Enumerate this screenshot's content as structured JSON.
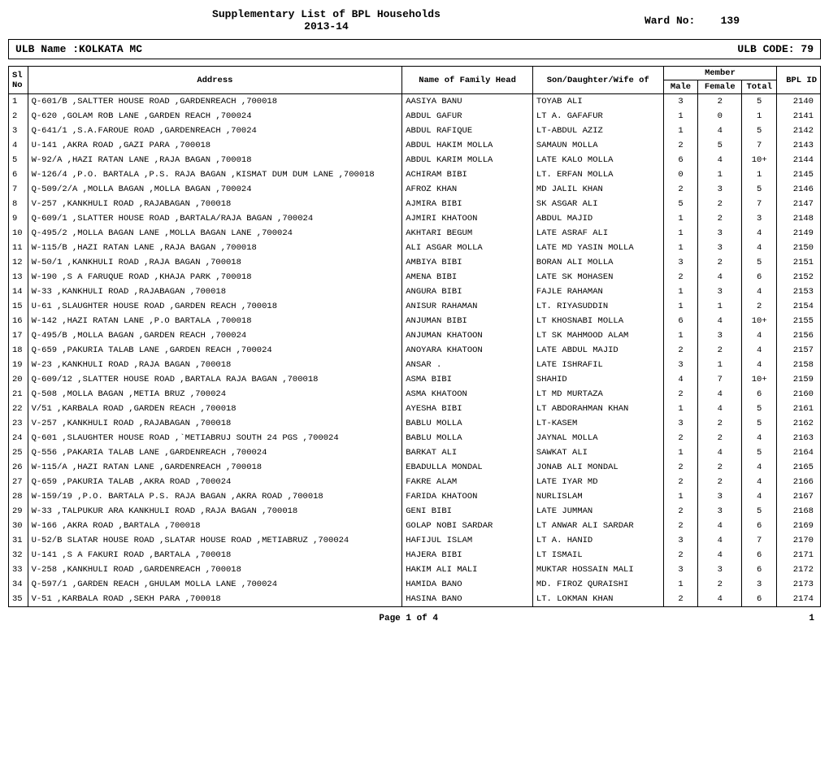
{
  "header": {
    "title_line1": "Supplementary List of BPL Households",
    "title_line2": "2013-14",
    "ward_label": "Ward No:",
    "ward_no": "139"
  },
  "ulb": {
    "name_label": "ULB Name :",
    "name": "KOLKATA MC",
    "code_label": "ULB CODE:",
    "code": "79"
  },
  "columns": {
    "sl": "Sl No",
    "address": "Address",
    "family_head": "Name of Family Head",
    "relation": "Son/Daughter/Wife of",
    "member": "Member",
    "male": "Male",
    "female": "Female",
    "total": "Total",
    "bpl_id": "BPL ID"
  },
  "rows": [
    {
      "sl": "1",
      "addr": "Q-601/B ,SALTTER HOUSE ROAD ,GARDENREACH ,700018",
      "head": "AASIYA  BANU",
      "rel": "TOYAB ALI",
      "m": "3",
      "f": "2",
      "t": "5",
      "bpl": "2140"
    },
    {
      "sl": "2",
      "addr": "Q-620 ,GOLAM ROB LANE ,GARDEN REACH ,700024",
      "head": "ABDUL  GAFUR",
      "rel": "LT A. GAFAFUR",
      "m": "1",
      "f": "0",
      "t": "1",
      "bpl": "2141"
    },
    {
      "sl": "3",
      "addr": "Q-641/1 ,S.A.FAROUE ROAD ,GARDENREACH ,70024",
      "head": "ABDUL  RAFIQUE",
      "rel": "LT-ABDUL AZIZ",
      "m": "1",
      "f": "4",
      "t": "5",
      "bpl": "2142"
    },
    {
      "sl": "4",
      "addr": "U-141 ,AKRA ROAD  ,GAZI PARA ,700018",
      "head": "ABDUL HAKIM  MOLLA",
      "rel": "SAMAUN MOLLA",
      "m": "2",
      "f": "5",
      "t": "7",
      "bpl": "2143"
    },
    {
      "sl": "5",
      "addr": "W-92/A ,HAZI RATAN LANE ,RAJA BAGAN ,700018",
      "head": "ABDUL KARIM MOLLA",
      "rel": "LATE KALO MOLLA",
      "m": "6",
      "f": "4",
      "t": "10+",
      "bpl": "2144"
    },
    {
      "sl": "6",
      "addr": "W-126/4 ,P.O. BARTALA ,P.S. RAJA BAGAN  ,KISMAT DUM DUM LANE ,700018",
      "head": "ACHIRAM  BIBI",
      "rel": "LT. ERFAN MOLLA",
      "m": "0",
      "f": "1",
      "t": "1",
      "bpl": "2145"
    },
    {
      "sl": "7",
      "addr": "Q-509/2/A ,MOLLA BAGAN ,MOLLA BAGAN ,700024",
      "head": "AFROZ  KHAN",
      "rel": "MD JALIL KHAN",
      "m": "2",
      "f": "3",
      "t": "5",
      "bpl": "2146"
    },
    {
      "sl": "8",
      "addr": "V-257 ,KANKHULI ROAD ,RAJABAGAN ,700018",
      "head": "AJMIRA  BIBI",
      "rel": "SK ASGAR ALI",
      "m": "5",
      "f": "2",
      "t": "7",
      "bpl": "2147"
    },
    {
      "sl": "9",
      "addr": "Q-609/1 ,SLATTER HOUSE ROAD ,BARTALA/RAJA BAGAN ,700024",
      "head": "AJMIRI  KHATOON",
      "rel": "ABDUL MAJID",
      "m": "1",
      "f": "2",
      "t": "3",
      "bpl": "2148"
    },
    {
      "sl": "10",
      "addr": "Q-495/2 ,MOLLA BAGAN LANE ,MOLLA BAGAN LANE ,700024",
      "head": "AKHTARI  BEGUM",
      "rel": "LATE ASRAF ALI",
      "m": "1",
      "f": "3",
      "t": "4",
      "bpl": "2149"
    },
    {
      "sl": "11",
      "addr": "W-115/B ,HAZI RATAN LANE ,RAJA BAGAN ,700018",
      "head": "ALI ASGAR MOLLA",
      "rel": "LATE MD YASIN MOLLA",
      "m": "1",
      "f": "3",
      "t": "4",
      "bpl": "2150"
    },
    {
      "sl": "12",
      "addr": "W-50/1 ,KANKHULI ROAD ,RAJA BAGAN ,700018",
      "head": "AMBIYA  BIBI",
      "rel": "BORAN ALI MOLLA",
      "m": "3",
      "f": "2",
      "t": "5",
      "bpl": "2151"
    },
    {
      "sl": "13",
      "addr": "W-190 ,S A FARUQUE ROAD ,KHAJA PARK ,700018",
      "head": "AMENA  BIBI",
      "rel": "LATE SK MOHASEN",
      "m": "2",
      "f": "4",
      "t": "6",
      "bpl": "2152"
    },
    {
      "sl": "14",
      "addr": "W-33 ,KANKHULI ROAD ,RAJABAGAN ,700018",
      "head": "ANGURA   BIBI",
      "rel": "FAJLE RAHAMAN",
      "m": "1",
      "f": "3",
      "t": "4",
      "bpl": "2153"
    },
    {
      "sl": "15",
      "addr": "U-61 ,SLAUGHTER HOUSE ROAD ,GARDEN REACH ,700018",
      "head": "ANISUR  RAHAMAN",
      "rel": "LT. RIYASUDDIN",
      "m": "1",
      "f": "1",
      "t": "2",
      "bpl": "2154"
    },
    {
      "sl": "16",
      "addr": "W-142 ,HAZI RATAN LANE ,P.O BARTALA ,700018",
      "head": "ANJUMAN  BIBI",
      "rel": "LT KHOSNABI MOLLA",
      "m": "6",
      "f": "4",
      "t": "10+",
      "bpl": "2155"
    },
    {
      "sl": "17",
      "addr": "Q-495/B ,MOLLA BAGAN ,GARDEN REACH ,700024",
      "head": "ANJUMAN  KHATOON",
      "rel": "LT SK MAHMOOD ALAM",
      "m": "1",
      "f": "3",
      "t": "4",
      "bpl": "2156"
    },
    {
      "sl": "18",
      "addr": "Q-659 ,PAKURIA TALAB LANE ,GARDEN REACH ,700024",
      "head": "ANOYARA  KHATOON",
      "rel": "LATE ABDUL MAJID",
      "m": "2",
      "f": "2",
      "t": "4",
      "bpl": "2157"
    },
    {
      "sl": "19",
      "addr": "W-23 ,KANKHULI ROAD ,RAJA BAGAN ,700018",
      "head": "ANSAR  .",
      "rel": "LATE ISHRAFIL",
      "m": "3",
      "f": "1",
      "t": "4",
      "bpl": "2158"
    },
    {
      "sl": "20",
      "addr": "Q-609/12 ,SLATTER HOUSE ROAD ,BARTALA RAJA BAGAN ,700018",
      "head": "ASMA  BIBI",
      "rel": "SHAHID",
      "m": "4",
      "f": "7",
      "t": "10+",
      "bpl": "2159"
    },
    {
      "sl": "21",
      "addr": "Q-508 ,MOLLA BAGAN ,METIA BRUZ ,700024",
      "head": "ASMA  KHATOON",
      "rel": "LT MD MURTAZA",
      "m": "2",
      "f": "4",
      "t": "6",
      "bpl": "2160"
    },
    {
      "sl": "22",
      "addr": "V/51 ,KARBALA ROAD ,GARDEN REACH ,700018",
      "head": "AYESHA  BIBI",
      "rel": "LT ABDORAHMAN KHAN",
      "m": "1",
      "f": "4",
      "t": "5",
      "bpl": "2161"
    },
    {
      "sl": "23",
      "addr": "V-257 ,KANKHULI ROAD ,RAJABAGAN ,700018",
      "head": "BABLU  MOLLA",
      "rel": "LT-KASEM",
      "m": "3",
      "f": "2",
      "t": "5",
      "bpl": "2162"
    },
    {
      "sl": "24",
      "addr": "Q-601 ,SLAUGHTER HOUSE ROAD ,`METIABRUJ SOUTH 24 PGS ,700024",
      "head": "BABLU  MOLLA",
      "rel": "JAYNAL MOLLA",
      "m": "2",
      "f": "2",
      "t": "4",
      "bpl": "2163"
    },
    {
      "sl": "25",
      "addr": "Q-556 ,PAKARIA TALAB LANE ,GARDENREACH ,700024",
      "head": "BARKAT   ALI",
      "rel": "SAWKAT ALI",
      "m": "1",
      "f": "4",
      "t": "5",
      "bpl": "2164"
    },
    {
      "sl": "26",
      "addr": "W-115/A ,HAZI RATAN LANE ,GARDENREACH ,700018",
      "head": "EBADULLA  MONDAL",
      "rel": "JONAB ALI MONDAL",
      "m": "2",
      "f": "2",
      "t": "4",
      "bpl": "2165"
    },
    {
      "sl": "27",
      "addr": "Q-659 ,PAKURIA TALAB ,AKRA ROAD ,700024",
      "head": "FAKRE  ALAM",
      "rel": "LATE IYAR MD",
      "m": "2",
      "f": "2",
      "t": "4",
      "bpl": "2166"
    },
    {
      "sl": "28",
      "addr": "W-159/19 ,P.O. BARTALA P.S. RAJA BAGAN ,AKRA ROAD ,700018",
      "head": "FARIDA  KHATOON",
      "rel": "NURLISLAM",
      "m": "1",
      "f": "3",
      "t": "4",
      "bpl": "2167"
    },
    {
      "sl": "29",
      "addr": "W-33 ,TALPUKUR ARA KANKHULI ROAD ,RAJA BAGAN ,700018",
      "head": "GENI  BIBI",
      "rel": "LATE JUMMAN",
      "m": "2",
      "f": "3",
      "t": "5",
      "bpl": "2168"
    },
    {
      "sl": "30",
      "addr": "W-166 ,AKRA ROAD ,BARTALA ,700018",
      "head": "GOLAP NOBI SARDAR",
      "rel": "LT ANWAR ALI SARDAR",
      "m": "2",
      "f": "4",
      "t": "6",
      "bpl": "2169"
    },
    {
      "sl": "31",
      "addr": "U-52/B SLATAR HOUSE ROAD ,SLATAR HOUSE ROAD ,METIABRUZ ,700024",
      "head": "HAFIJUL  ISLAM",
      "rel": "LT  A. HANID",
      "m": "3",
      "f": "4",
      "t": "7",
      "bpl": "2170"
    },
    {
      "sl": "32",
      "addr": "U-141 ,S A FAKURI ROAD ,BARTALA ,700018",
      "head": "HAJERA  BIBI",
      "rel": "LT ISMAIL",
      "m": "2",
      "f": "4",
      "t": "6",
      "bpl": "2171"
    },
    {
      "sl": "33",
      "addr": "V-258 ,KANKHULI ROAD ,GARDENREACH  ,700018",
      "head": "HAKIM ALI MALI",
      "rel": "MUKTAR HOSSAIN MALI",
      "m": "3",
      "f": "3",
      "t": "6",
      "bpl": "2172"
    },
    {
      "sl": "34",
      "addr": "Q-597/1 ,GARDEN REACH  ,GHULAM MOLLA LANE ,700024",
      "head": "HAMIDA  BANO",
      "rel": "MD. FIROZ QURAISHI",
      "m": "1",
      "f": "2",
      "t": "3",
      "bpl": "2173"
    },
    {
      "sl": "35",
      "addr": "V-51 ,KARBALA ROAD  ,SEKH PARA ,700018",
      "head": "HASINA  BANO",
      "rel": "LT. LOKMAN KHAN",
      "m": "2",
      "f": "4",
      "t": "6",
      "bpl": "2174"
    }
  ],
  "footer": {
    "page_text": "Page 1 of 4",
    "page_number": "1"
  }
}
